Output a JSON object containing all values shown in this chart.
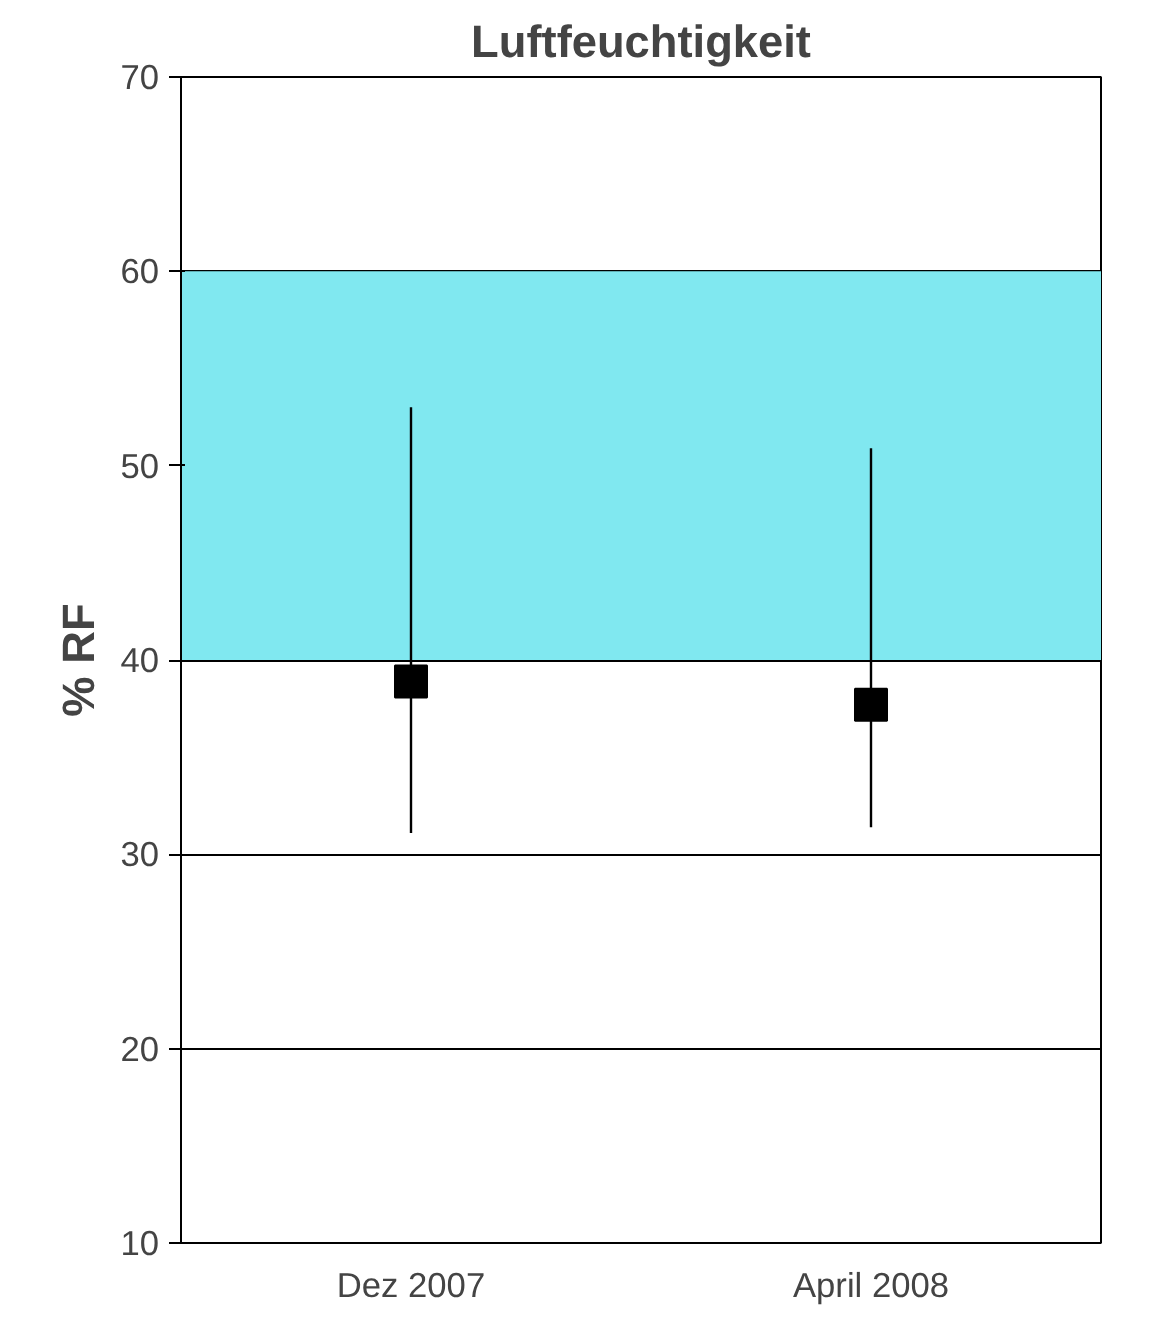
{
  "chart_data": {
    "type": "scatter",
    "title": "Luftfeuchtigkeit",
    "ylabel": "% RF",
    "categories": [
      "Dez 2007",
      "April 2008"
    ],
    "values": [
      38.9,
      37.7
    ],
    "color": "#000000",
    "marker": "square",
    "errors": [
      [
        31.1,
        53
      ],
      [
        31.4,
        50.9
      ]
    ],
    "ylim": [
      10,
      70
    ],
    "yticks": [
      10,
      20,
      30,
      40,
      50,
      60,
      70
    ],
    "grid": "y",
    "bands": [
      {
        "axis": "y",
        "from": 40,
        "to": 60,
        "label": null,
        "color": "#80e8f0"
      }
    ]
  }
}
